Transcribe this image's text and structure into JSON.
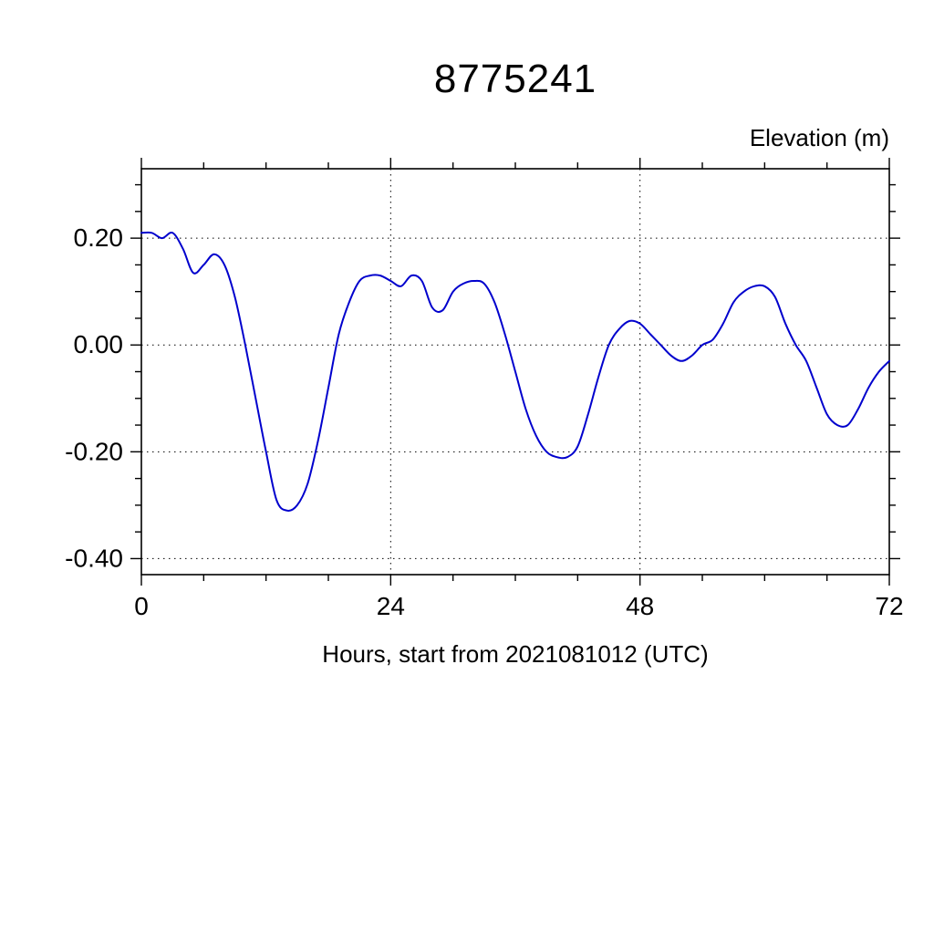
{
  "title": "8775241",
  "axes": {
    "y_title": "Elevation (m)",
    "x_title": "Hours, start from 2021081012 (UTC)"
  },
  "chart_data": {
    "type": "line",
    "title": "8775241",
    "xlabel": "Hours, start from 2021081012 (UTC)",
    "ylabel": "Elevation (m)",
    "xlim": [
      0,
      72
    ],
    "ylim": [
      -0.43,
      0.33
    ],
    "x_major_ticks": [
      0,
      24,
      48,
      72
    ],
    "x_tick_labels": [
      "0",
      "24",
      "48",
      "72"
    ],
    "x_minor_step": 6,
    "y_major_ticks": [
      0.2,
      0.0,
      -0.2,
      -0.4
    ],
    "y_tick_labels": [
      "0.20",
      "0.00",
      "-0.20",
      "-0.40"
    ],
    "y_minor_step": 0.05,
    "grid": "dotted lines at major ticks",
    "legend": "none",
    "line_color": "#0000cd",
    "series": [
      {
        "name": "elevation",
        "x": [
          0,
          1,
          2,
          3,
          4,
          5,
          6,
          7,
          8,
          9,
          10,
          11,
          12,
          13,
          14,
          15,
          16,
          17,
          18,
          19,
          20,
          21,
          22,
          23,
          24,
          25,
          26,
          27,
          28,
          29,
          30,
          31,
          32,
          33,
          34,
          35,
          36,
          37,
          38,
          39,
          40,
          41,
          42,
          43,
          44,
          45,
          46,
          47,
          48,
          49,
          50,
          51,
          52,
          53,
          54,
          55,
          56,
          57,
          58,
          59,
          60,
          61,
          62,
          63,
          64,
          65,
          66,
          67,
          68,
          69,
          70,
          71,
          72
        ],
        "y": [
          0.21,
          0.21,
          0.2,
          0.21,
          0.18,
          0.135,
          0.15,
          0.17,
          0.15,
          0.09,
          0.0,
          -0.1,
          -0.2,
          -0.29,
          -0.31,
          -0.3,
          -0.26,
          -0.18,
          -0.08,
          0.02,
          0.08,
          0.12,
          0.13,
          0.13,
          0.12,
          0.11,
          0.13,
          0.12,
          0.07,
          0.065,
          0.1,
          0.115,
          0.12,
          0.115,
          0.08,
          0.02,
          -0.05,
          -0.12,
          -0.17,
          -0.2,
          -0.21,
          -0.21,
          -0.19,
          -0.13,
          -0.06,
          0.0,
          0.03,
          0.045,
          0.04,
          0.02,
          0.0,
          -0.02,
          -0.03,
          -0.02,
          0.0,
          0.01,
          0.04,
          0.08,
          0.1,
          0.11,
          0.11,
          0.09,
          0.04,
          0.0,
          -0.03,
          -0.08,
          -0.13,
          -0.15,
          -0.15,
          -0.12,
          -0.08,
          -0.05,
          -0.03
        ]
      }
    ]
  }
}
